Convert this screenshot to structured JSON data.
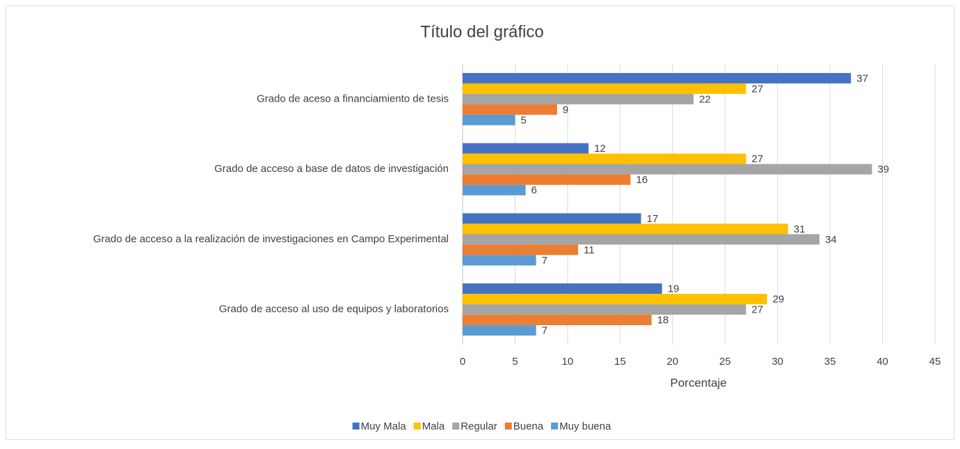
{
  "chart_data": {
    "type": "bar",
    "orientation": "horizontal",
    "title": "Título del gráfico",
    "x_label": "Porcentaje",
    "categories": [
      "Grado de aceso a financiamiento de tesis",
      "Grado de acceso a base de datos de investigación",
      "Grado de acceso a la realización de investigaciones en Campo Experimental",
      "Grado de acceso al uso de equipos y laboratorios"
    ],
    "series": [
      {
        "name": "Muy Mala",
        "color": "#4472c4",
        "values": [
          37,
          12,
          17,
          19
        ]
      },
      {
        "name": "Mala",
        "color": "#ffc000",
        "values": [
          27,
          27,
          31,
          29
        ]
      },
      {
        "name": "Regular",
        "color": "#a5a5a5",
        "values": [
          22,
          39,
          34,
          27
        ]
      },
      {
        "name": "Buena",
        "color": "#ed7d31",
        "values": [
          9,
          16,
          11,
          18
        ]
      },
      {
        "name": "Muy buena",
        "color": "#5b9bd5",
        "values": [
          5,
          6,
          7,
          7
        ]
      }
    ],
    "xlim": [
      0,
      45
    ],
    "xticks": [
      0,
      5,
      10,
      15,
      20,
      25,
      30,
      35,
      40,
      45
    ],
    "grid": true,
    "legend": "bottom"
  }
}
